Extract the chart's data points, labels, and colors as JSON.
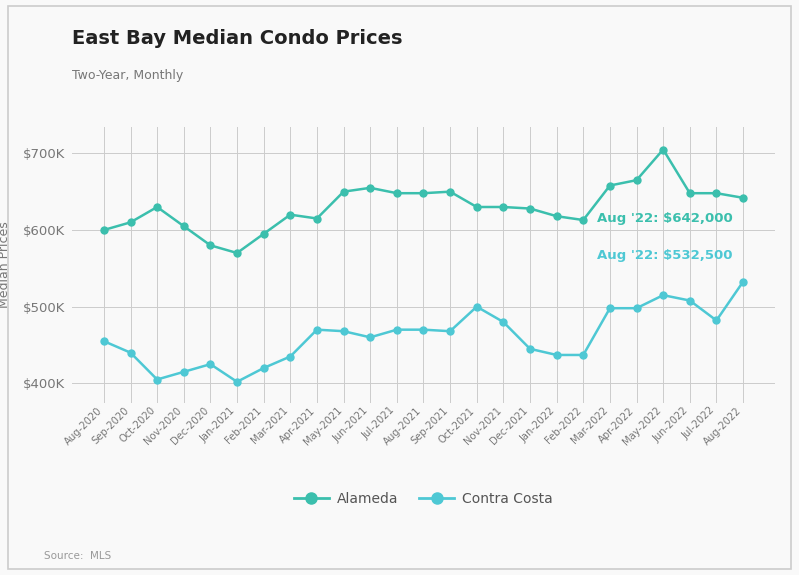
{
  "title": "East Bay Median Condo Prices",
  "subtitle": "Two-Year, Monthly",
  "source": "Source:  MLS",
  "ylabel": "Median Prices",
  "background_color": "#f9f9f9",
  "plot_bg_color": "#f9f9f9",
  "alameda_color": "#3bbfad",
  "contra_costa_color": "#4ec8d4",
  "annotation_color_alameda": "#3bbfad",
  "annotation_color_contra": "#4ec8d4",
  "labels": [
    "Aug-2020",
    "Sep-2020",
    "Oct-2020",
    "Nov-2020",
    "Dec-2020",
    "Jan-2021",
    "Feb-2021",
    "Mar-2021",
    "Apr-2021",
    "May-2021",
    "Jun-2021",
    "Jul-2021",
    "Aug-2021",
    "Sep-2021",
    "Oct-2021",
    "Nov-2021",
    "Dec-2021",
    "Jan-2022",
    "Feb-2022",
    "Mar-2022",
    "Apr-2022",
    "May-2022",
    "Jun-2022",
    "Jul-2022",
    "Aug-2022"
  ],
  "alameda": [
    600000,
    610000,
    630000,
    605000,
    580000,
    570000,
    595000,
    620000,
    615000,
    650000,
    655000,
    648000,
    648000,
    650000,
    630000,
    630000,
    628000,
    618000,
    613000,
    658000,
    665000,
    705000,
    648000,
    648000,
    642000
  ],
  "contra_costa": [
    455000,
    440000,
    405000,
    415000,
    425000,
    402000,
    420000,
    435000,
    470000,
    468000,
    460000,
    470000,
    470000,
    468000,
    500000,
    480000,
    445000,
    437000,
    437000,
    498000,
    498000,
    515000,
    508000,
    482000,
    532500
  ],
  "ylim": [
    375000,
    735000
  ],
  "yticks": [
    400000,
    500000,
    600000,
    700000
  ],
  "annotation_alameda": "Aug '22: $642,000",
  "annotation_contra": "Aug '22: $532,500"
}
